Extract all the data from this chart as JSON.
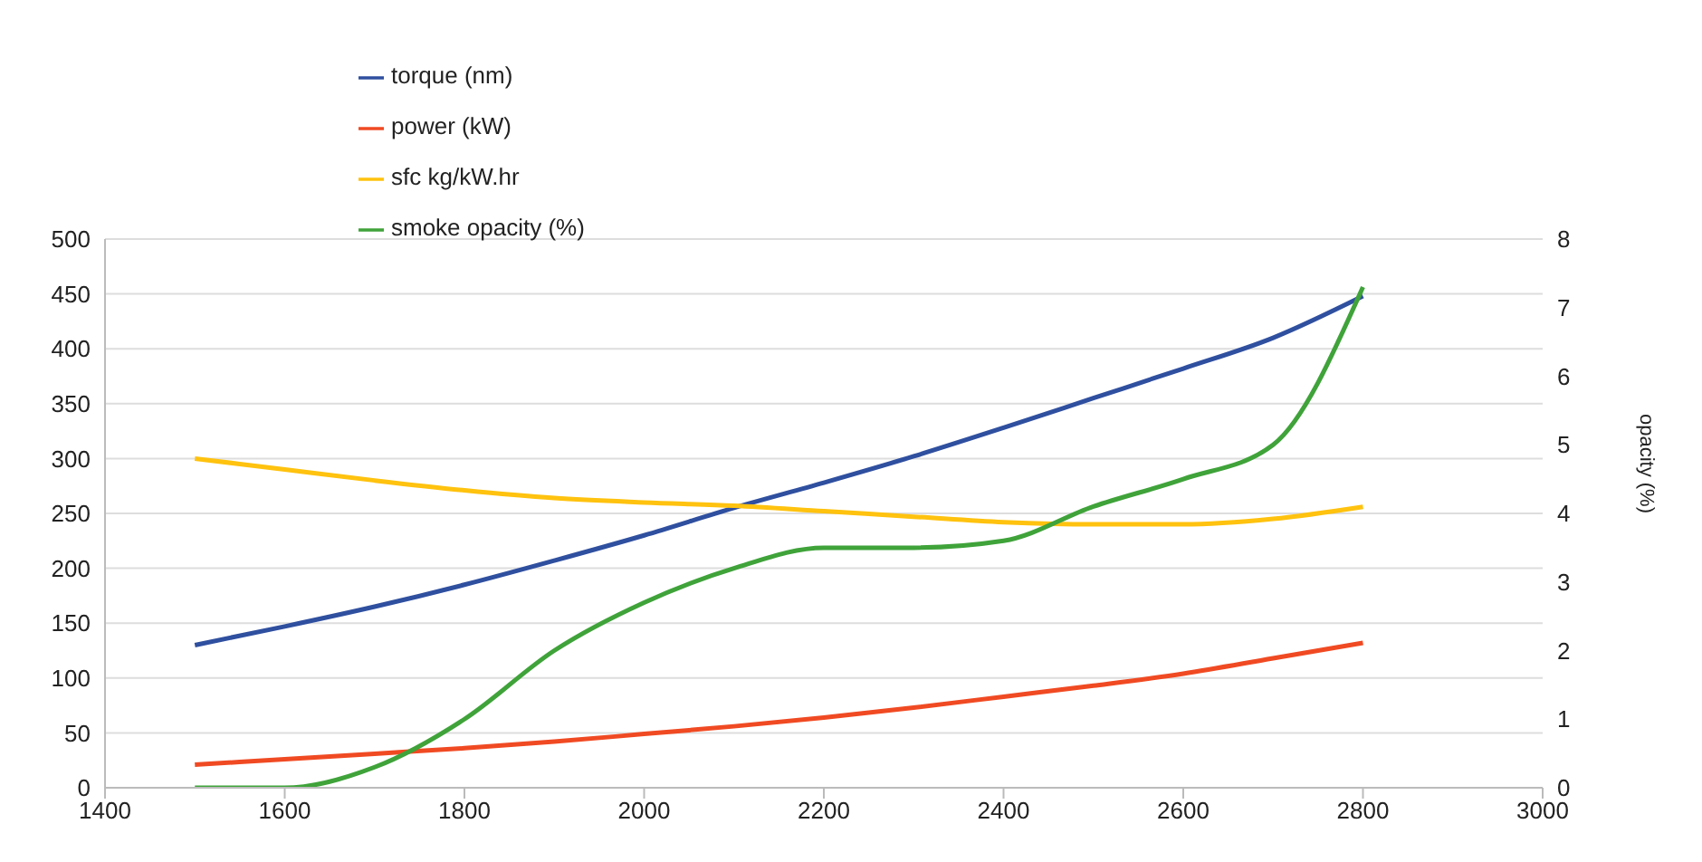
{
  "chart_data": {
    "type": "line",
    "x": [
      1500,
      1600,
      1700,
      1800,
      1900,
      2000,
      2100,
      2200,
      2300,
      2400,
      2500,
      2600,
      2700,
      2800
    ],
    "series": [
      {
        "name": "torque (nm)",
        "color": "#2f4f9f",
        "values": [
          130,
          147,
          165,
          185,
          207,
          230,
          255,
          278,
          302,
          328,
          355,
          382,
          410,
          448
        ]
      },
      {
        "name": "power (kW)",
        "color": "#f04a23",
        "values": [
          21,
          26,
          31,
          36,
          42,
          49,
          56,
          64,
          73,
          83,
          93,
          104,
          118,
          132
        ]
      },
      {
        "name": "sfc kg/kW.hr",
        "color": "#ffc20e",
        "values": [
          300,
          290,
          280,
          271,
          264,
          260,
          257,
          252,
          247,
          242,
          240,
          240,
          245,
          256
        ]
      },
      {
        "name": "smoke opacity (%)",
        "color": "#3fa33a",
        "axis": "y2",
        "values": [
          0,
          0,
          0.3,
          1,
          2,
          2.7,
          3.2,
          3.5,
          3.5,
          3.6,
          4.1,
          4.5,
          5,
          7.3
        ]
      }
    ],
    "xlim": [
      1400,
      3000
    ],
    "xticks": [
      1400,
      1600,
      1800,
      2000,
      2200,
      2400,
      2600,
      2800,
      3000
    ],
    "ylim": [
      0,
      500
    ],
    "yticks": [
      0,
      50,
      100,
      150,
      200,
      250,
      300,
      350,
      400,
      450,
      500
    ],
    "y2lim": [
      0,
      8
    ],
    "y2ticks": [
      0,
      1,
      2,
      3,
      4,
      5,
      6,
      7,
      8
    ],
    "y2label": "opacity (%)",
    "grid": "y",
    "legend": "top left",
    "marker": "none",
    "line_style": "solid"
  }
}
